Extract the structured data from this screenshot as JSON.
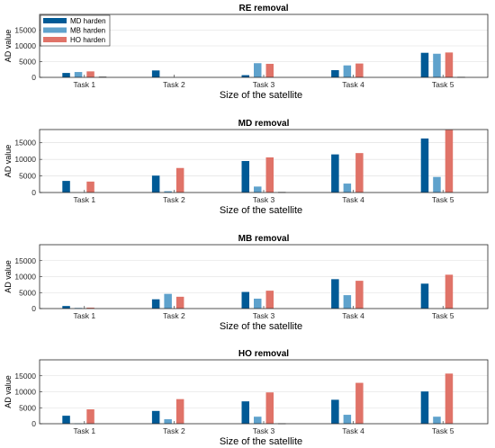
{
  "chart_data": [
    {
      "type": "bar",
      "title": "RE removal",
      "xlabel": "Size of the satellite",
      "ylabel": "AD value",
      "ylim": [
        0,
        20000
      ],
      "yticks": [
        "0",
        "5000",
        "10000",
        "15000"
      ],
      "categories": [
        "Task 1",
        "Task 2",
        "Task 3",
        "Task 4",
        "Task 5"
      ],
      "series": [
        {
          "name": "MD harden",
          "values": [
            1400,
            2200,
            700,
            2300,
            7800
          ]
        },
        {
          "name": "MB harden",
          "values": [
            1700,
            0,
            4500,
            3800,
            7500
          ]
        },
        {
          "name": "HO harden",
          "values": [
            1900,
            0,
            4300,
            4400,
            7900
          ]
        },
        {
          "name": "",
          "values": [
            200,
            0,
            0,
            0,
            150
          ]
        }
      ],
      "legend": "top-left",
      "grid": true
    },
    {
      "type": "bar",
      "title": "MD removal",
      "xlabel": "Size of the satellite",
      "ylabel": "AD value",
      "ylim": [
        0,
        19000
      ],
      "yticks": [
        "0",
        "5000",
        "10000",
        "15000"
      ],
      "categories": [
        "Task 1",
        "Task 2",
        "Task 3",
        "Task 4",
        "Task 5"
      ],
      "series": [
        {
          "name": "MD harden",
          "values": [
            3500,
            5100,
            9500,
            11500,
            16300
          ]
        },
        {
          "name": "MB harden",
          "values": [
            0,
            400,
            1800,
            2700,
            4700
          ]
        },
        {
          "name": "HO harden",
          "values": [
            3300,
            7400,
            10600,
            11900,
            18900
          ]
        },
        {
          "name": "",
          "values": [
            0,
            0,
            150,
            0,
            0
          ]
        }
      ],
      "grid": true
    },
    {
      "type": "bar",
      "title": "MB removal",
      "xlabel": "Size of the satellite",
      "ylabel": "AD value",
      "ylim": [
        0,
        20000
      ],
      "yticks": [
        "0",
        "5000",
        "10000",
        "15000"
      ],
      "categories": [
        "Task 1",
        "Task 2",
        "Task 3",
        "Task 4",
        "Task 5"
      ],
      "series": [
        {
          "name": "MD harden",
          "values": [
            800,
            2900,
            5200,
            9200,
            7800
          ]
        },
        {
          "name": "MB harden",
          "values": [
            200,
            4600,
            3100,
            4200,
            0
          ]
        },
        {
          "name": "HO harden",
          "values": [
            300,
            3700,
            5600,
            8700,
            10600
          ]
        },
        {
          "name": "",
          "values": [
            0,
            0,
            0,
            0,
            0
          ]
        }
      ],
      "grid": true
    },
    {
      "type": "bar",
      "title": "HO removal",
      "xlabel": "Size of the satellite",
      "ylabel": "AD value",
      "ylim": [
        0,
        20000
      ],
      "yticks": [
        "0",
        "5000",
        "10000",
        "15000"
      ],
      "categories": [
        "Task 1",
        "Task 2",
        "Task 3",
        "Task 4",
        "Task 5"
      ],
      "series": [
        {
          "name": "MD harden",
          "values": [
            2500,
            4000,
            7000,
            7500,
            10100
          ]
        },
        {
          "name": "MB harden",
          "values": [
            100,
            1400,
            2200,
            2800,
            2200
          ]
        },
        {
          "name": "HO harden",
          "values": [
            4500,
            7700,
            9800,
            12800,
            15700
          ]
        },
        {
          "name": "",
          "values": [
            0,
            0,
            100,
            0,
            0
          ]
        }
      ],
      "grid": true
    }
  ],
  "colors": {
    "series": [
      "#005a96",
      "#5fa2cc",
      "#e07368",
      "#1a1a1a"
    ],
    "frame": "#262626",
    "grid": "#dcdcdc"
  }
}
